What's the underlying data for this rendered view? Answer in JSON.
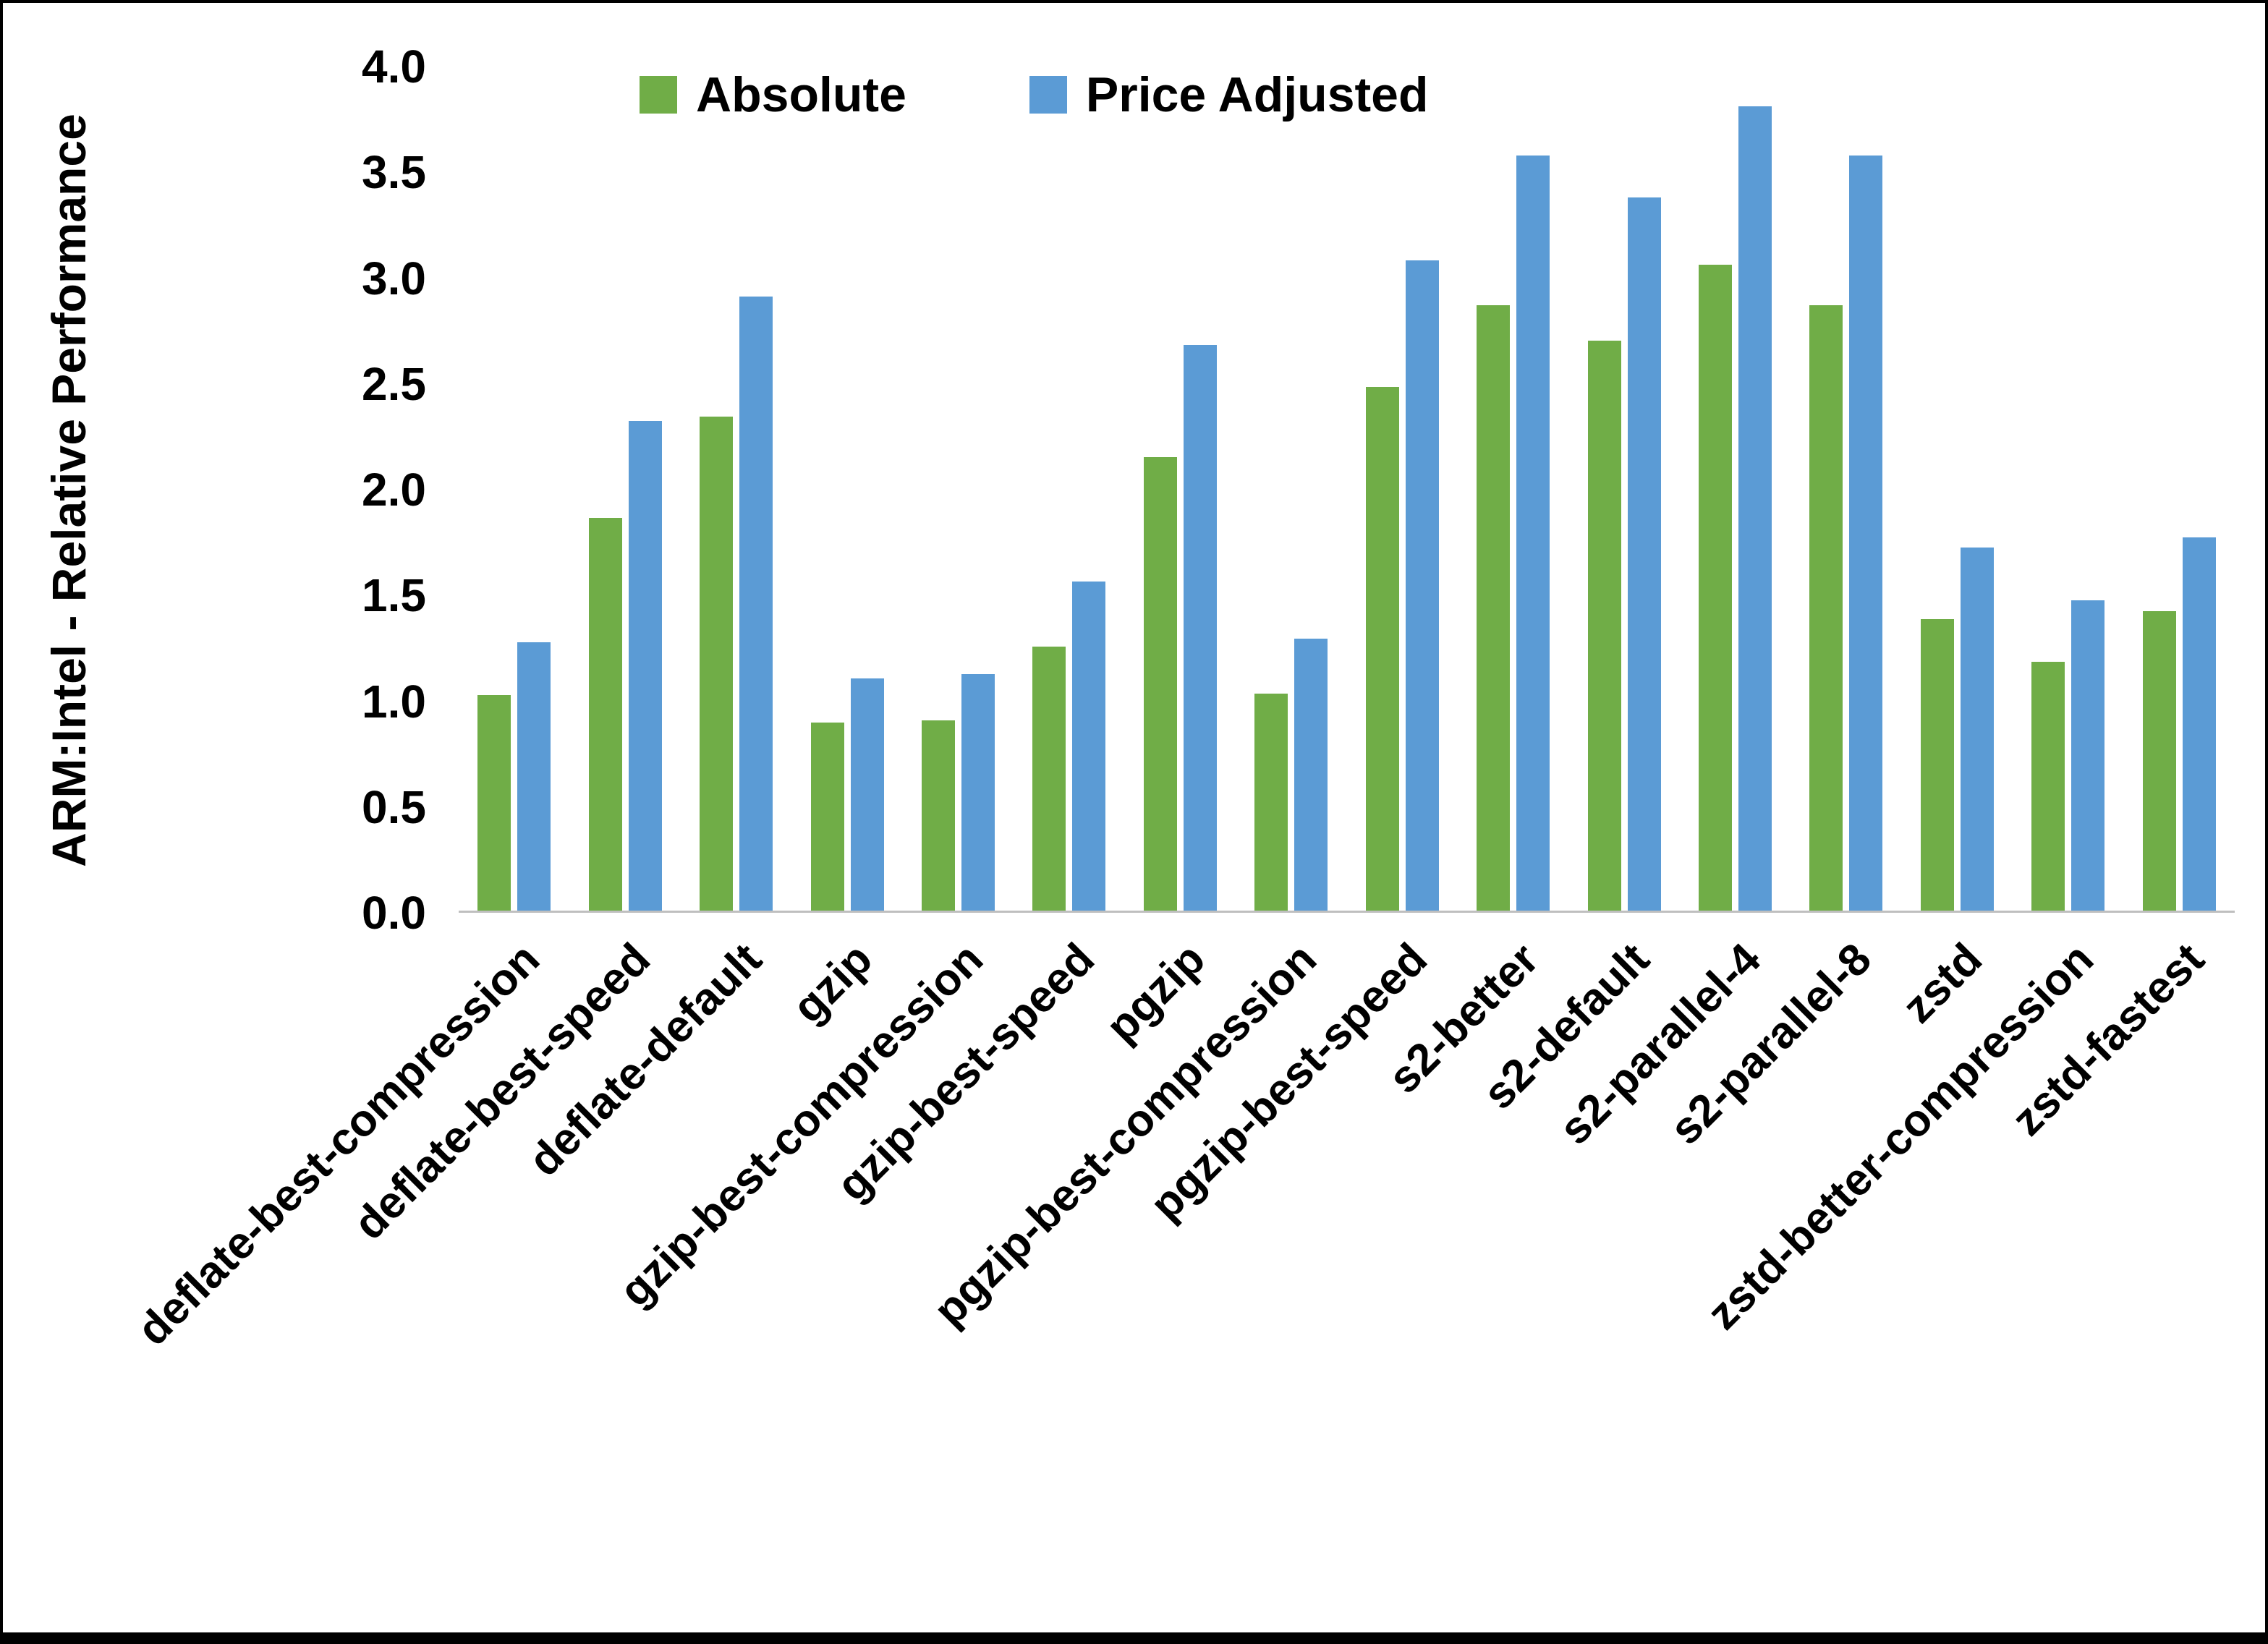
{
  "page": {
    "background": "#FFFFFF",
    "border_color": "#000000"
  },
  "chart_data": {
    "type": "bar",
    "title": "",
    "ylabel": "ARM:Intel - Relative Performance",
    "xlabel": "",
    "ylim": [
      0,
      4.0
    ],
    "ytick_step": 0.5,
    "ytick_decimals": 1,
    "grid": false,
    "legend_position": "top-center",
    "axis_line_color": "#BFBFBF",
    "categories": [
      "deflate-best-compression",
      "deflate-best-speed",
      "deflate-default",
      "gzip",
      "gzip-best-compression",
      "gzip-best-speed",
      "pgzip",
      "pgzip-best-compression",
      "pgzip-best-speed",
      "s2-better",
      "s2-default",
      "s2-parallel-4",
      "s2-parallel-8",
      "zstd",
      "zstd-better-compression",
      "zstd-fastest"
    ],
    "series": [
      {
        "name": "Absolute",
        "color": "#70AD47",
        "values": [
          1.02,
          1.86,
          2.34,
          0.89,
          0.9,
          1.25,
          2.15,
          1.03,
          2.48,
          2.87,
          2.7,
          3.06,
          2.87,
          1.38,
          1.18,
          1.42
        ]
      },
      {
        "name": "Price Adjusted",
        "color": "#5B9BD5",
        "values": [
          1.27,
          2.32,
          2.91,
          1.1,
          1.12,
          1.56,
          2.68,
          1.29,
          3.08,
          3.58,
          3.38,
          3.81,
          3.58,
          1.72,
          1.47,
          1.77
        ]
      }
    ]
  }
}
